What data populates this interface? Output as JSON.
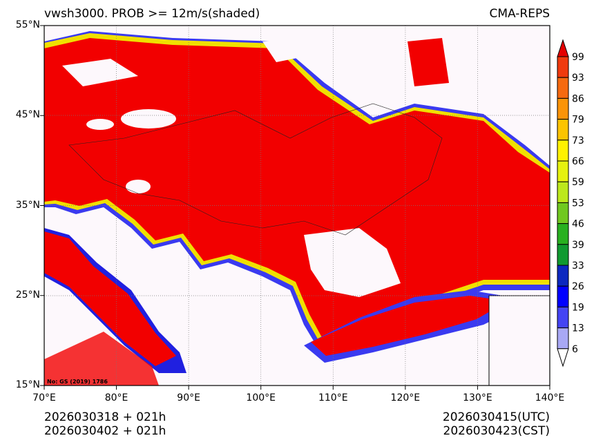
{
  "header": {
    "title": "vwsh3000. PROB >= 12m/s(shaded)",
    "brand": "CMA-REPS"
  },
  "axes": {
    "lat_labels": [
      "55°N",
      "45°N",
      "35°N",
      "25°N",
      "15°N"
    ],
    "lon_labels": [
      "70°E",
      "80°E",
      "90°E",
      "100°E",
      "110°E",
      "120°E",
      "130°E",
      "140°E"
    ]
  },
  "map": {
    "extent_lon": [
      70,
      140
    ],
    "extent_lat": [
      15,
      55
    ],
    "map_note": "No: GS (2019) 1786"
  },
  "colorbar": {
    "labels": [
      "99",
      "93",
      "86",
      "79",
      "73",
      "66",
      "59",
      "53",
      "46",
      "39",
      "33",
      "26",
      "19",
      "13",
      "6"
    ],
    "colors": [
      "#f03a0e",
      "#f66a10",
      "#fb9408",
      "#fcc400",
      "#fff200",
      "#e6f20e",
      "#bce81c",
      "#70c820",
      "#28b020",
      "#109a30",
      "#0c28c0",
      "#0000ff",
      "#4444f4",
      "#a8a8f4"
    ],
    "over_color": "#e40000",
    "under_color": "#ffffff"
  },
  "footer": {
    "init_utc": "2026030318  +  021h",
    "init_cst": "2026030402  +  021h",
    "valid_utc": "2026030415(UTC)",
    "valid_cst": "2026030423(CST)"
  }
}
